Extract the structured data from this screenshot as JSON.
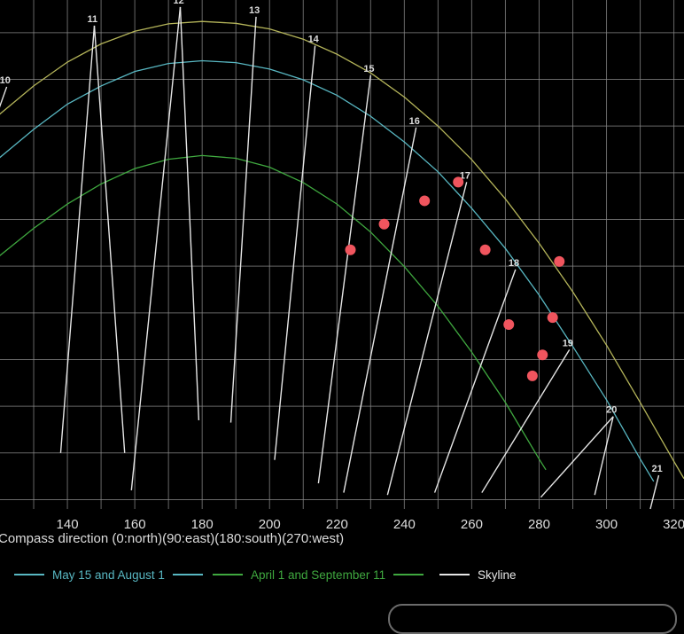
{
  "chart_data": {
    "type": "line",
    "xlabel": "Compass direction (0:north)(90:east)(180:south)(270:west)",
    "xlim": [
      120,
      323
    ],
    "ylim": [
      -2,
      107
    ],
    "x_ticks": [
      "140",
      "160",
      "180",
      "200",
      "220",
      "240",
      "260",
      "280",
      "300",
      "320"
    ],
    "grid": true,
    "colors": {
      "background": "#000000",
      "grid": "#8a8a8a",
      "june_curve": "#b5b55a",
      "may_aug_curve": "#58b7c2",
      "apr_sep_curve": "#3fa83f",
      "hour_lines": "#e6e6e6",
      "skyline_points": "#f0555e",
      "text": "#dddddd"
    },
    "sun_paths": [
      {
        "name": "",
        "points": [
          [
            115,
            78.8
          ],
          [
            120,
            82.6
          ],
          [
            130,
            88.6
          ],
          [
            140,
            93.7
          ],
          [
            150,
            97.6
          ],
          [
            160,
            100.3
          ],
          [
            170,
            101.9
          ],
          [
            180,
            102.4
          ],
          [
            190,
            102.0
          ],
          [
            200,
            100.8
          ],
          [
            210,
            98.6
          ],
          [
            220,
            95.4
          ],
          [
            230,
            91.4
          ],
          [
            240,
            86.2
          ],
          [
            250,
            80.0
          ],
          [
            260,
            72.8
          ],
          [
            270,
            64.4
          ],
          [
            280,
            54.9
          ],
          [
            290,
            44.5
          ],
          [
            300,
            33.1
          ],
          [
            310,
            20.8
          ],
          [
            320,
            8.2
          ],
          [
            323,
            4.5
          ]
        ]
      },
      {
        "name": "May 15 and August 1",
        "points": [
          [
            115,
            69.6
          ],
          [
            120,
            73.3
          ],
          [
            130,
            79.3
          ],
          [
            140,
            84.7
          ],
          [
            150,
            88.6
          ],
          [
            160,
            91.7
          ],
          [
            170,
            93.4
          ],
          [
            180,
            94.0
          ],
          [
            190,
            93.6
          ],
          [
            200,
            92.2
          ],
          [
            210,
            89.9
          ],
          [
            220,
            86.6
          ],
          [
            230,
            82.1
          ],
          [
            240,
            76.6
          ],
          [
            250,
            70.2
          ],
          [
            260,
            62.4
          ],
          [
            270,
            53.8
          ],
          [
            280,
            43.8
          ],
          [
            290,
            32.8
          ],
          [
            300,
            21.4
          ],
          [
            310,
            8.7
          ],
          [
            314,
            3.9
          ]
        ]
      },
      {
        "name": "April 1 and September 11",
        "points": [
          [
            115,
            48.9
          ],
          [
            120,
            52.3
          ],
          [
            130,
            58.1
          ],
          [
            140,
            63.3
          ],
          [
            150,
            67.6
          ],
          [
            160,
            70.9
          ],
          [
            170,
            72.9
          ],
          [
            180,
            73.7
          ],
          [
            190,
            73.1
          ],
          [
            200,
            71.2
          ],
          [
            210,
            67.9
          ],
          [
            220,
            63.3
          ],
          [
            230,
            57.3
          ],
          [
            240,
            49.9
          ],
          [
            250,
            41.4
          ],
          [
            260,
            31.6
          ],
          [
            270,
            20.8
          ],
          [
            280,
            8.7
          ],
          [
            282,
            6.4
          ]
        ]
      }
    ],
    "hour_lines": [
      {
        "label": "10",
        "start": [
          122.0,
          88.4
        ],
        "end": [
          108.0,
          60.0
        ]
      },
      {
        "label": "11",
        "start": [
          148.0,
          101.5
        ],
        "end": [
          138.0,
          10.0
        ]
      },
      {
        "label": "",
        "start": [
          148.0,
          101.5
        ],
        "end": [
          157.0,
          10.0
        ]
      },
      {
        "label": "12",
        "start": [
          173.5,
          105.5
        ],
        "end": [
          159.0,
          2.0
        ]
      },
      {
        "label": "",
        "start": [
          173.5,
          105.5
        ],
        "end": [
          179.0,
          17.0
        ]
      },
      {
        "label": "13",
        "start": [
          196.0,
          103.4
        ],
        "end": [
          188.5,
          16.5
        ]
      },
      {
        "label": "14",
        "start": [
          213.5,
          97.2
        ],
        "end": [
          201.5,
          8.5
        ]
      },
      {
        "label": "15",
        "start": [
          230.0,
          90.9
        ],
        "end": [
          214.5,
          3.5
        ]
      },
      {
        "label": "16",
        "start": [
          243.5,
          79.7
        ],
        "end": [
          222.0,
          1.5
        ]
      },
      {
        "label": "17",
        "start": [
          258.5,
          68.0
        ],
        "end": [
          235.0,
          1.0
        ]
      },
      {
        "label": "18",
        "start": [
          273.0,
          49.3
        ],
        "end": [
          249.0,
          1.5
        ]
      },
      {
        "label": "19",
        "start": [
          289.0,
          32.1
        ],
        "end": [
          263.0,
          1.5
        ]
      },
      {
        "label": "20",
        "start": [
          302.0,
          17.8
        ],
        "end": [
          280.5,
          0.5
        ]
      },
      {
        "label": "",
        "start": [
          302.0,
          17.8
        ],
        "end": [
          296.5,
          1.0
        ]
      },
      {
        "label": "21",
        "start": [
          315.5,
          5.2
        ],
        "end": [
          313.0,
          -2.0
        ]
      }
    ],
    "skyline": {
      "name": "Skyline",
      "points": [
        [
          224,
          53.5
        ],
        [
          234,
          59.0
        ],
        [
          246,
          64.0
        ],
        [
          256,
          68.0
        ],
        [
          264,
          53.5
        ],
        [
          271,
          37.5
        ],
        [
          278,
          26.5
        ],
        [
          281,
          31.0
        ],
        [
          284,
          39.0
        ],
        [
          286,
          51.0
        ]
      ]
    },
    "legend": [
      {
        "label": "May 15 and August 1",
        "color": "#58b7c2"
      },
      {
        "label": "April 1 and September 11",
        "color": "#3fa83f"
      },
      {
        "label": "Skyline",
        "color": "#e6e6e6"
      }
    ]
  }
}
